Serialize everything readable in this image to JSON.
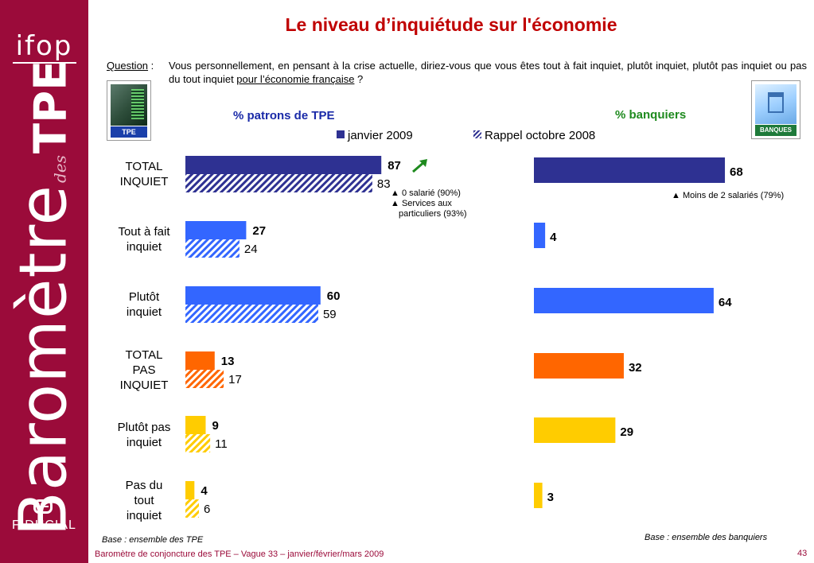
{
  "brand": {
    "ifop": "ifop",
    "barometre": "Baromètre",
    "des": "des",
    "tpe": "TPE",
    "fiducial": "FIDUCIAL"
  },
  "title": "Le niveau d’inquiétude sur l'économie",
  "question": {
    "label": "Question",
    "sep": " :",
    "text_part1": "Vous personnellement, en pensant à la crise actuelle, diriez-vous que vous êtes tout à fait inquiet, plutôt inquiet, plutôt pas inquiet ou pas du tout inquiet ",
    "text_underlined": "pour l’économie française",
    "text_part2": " ?"
  },
  "logos": {
    "tpe": "TPE",
    "banques": "BANQUES"
  },
  "colors": {
    "navy": "#2e3192",
    "blue": "#3366ff",
    "orange": "#ff6600",
    "yellow": "#ffcc00",
    "arrow": "#1e8a1e"
  },
  "chart_data": [
    {
      "type": "bar",
      "orientation": "horizontal",
      "title": "% patrons de TPE",
      "categories": [
        "TOTAL INQUIET",
        "Tout à fait inquiet",
        "Plutôt inquiet",
        "TOTAL PAS INQUIET",
        "Plutôt pas inquiet",
        "Pas du tout inquiet"
      ],
      "series": [
        {
          "name": "janvier 2009",
          "values": [
            87,
            27,
            60,
            13,
            9,
            4
          ]
        },
        {
          "name": "Rappel octobre 2008",
          "values": [
            83,
            24,
            59,
            17,
            11,
            6
          ]
        }
      ],
      "legend": "top",
      "annotations": [
        "0 salarié (90%)",
        "Services aux particuliers (93%)"
      ]
    },
    {
      "type": "bar",
      "orientation": "horizontal",
      "title": "% banquiers",
      "categories": [
        "TOTAL INQUIET",
        "Tout à fait inquiet",
        "Plutôt inquiet",
        "TOTAL PAS INQUIET",
        "Plutôt pas inquiet",
        "Pas du tout inquiet"
      ],
      "series": [
        {
          "values": [
            68,
            4,
            64,
            32,
            29,
            3
          ]
        }
      ],
      "annotations": [
        "Moins de 2 salariés (79%)"
      ]
    }
  ],
  "category_lines": [
    [
      "TOTAL",
      "INQUIET"
    ],
    [
      "Tout à fait",
      "inquiet"
    ],
    [
      "Plutôt",
      "inquiet"
    ],
    [
      "TOTAL",
      "PAS",
      "INQUIET"
    ],
    [
      "Plutôt pas",
      "inquiet"
    ],
    [
      "Pas du",
      "tout",
      "inquiet"
    ]
  ],
  "notes": {
    "left_1": "0 salarié (90%)",
    "left_2": "Services aux",
    "left_3": "particuliers (93%)",
    "right_1": "Moins de 2 salariés (79%)"
  },
  "base_left": "Base : ensemble des TPE",
  "base_right": "Base : ensemble des banquiers",
  "footer": "Baromètre de conjoncture des TPE – Vague 33 – janvier/février/mars 2009",
  "page_number": "43"
}
